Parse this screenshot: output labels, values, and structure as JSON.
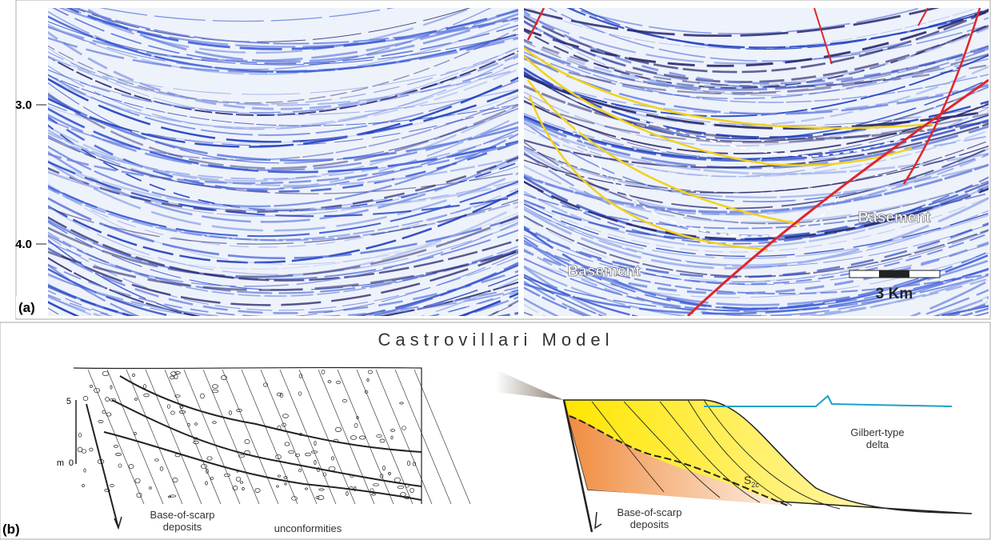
{
  "panel_a": {
    "label": "(a)",
    "depth_ticks": [
      "3.0",
      "4.0"
    ],
    "basement_labels": [
      "Basement",
      "Basement"
    ],
    "scale_bar": "3 Km"
  },
  "panel_b": {
    "label": "(b)",
    "title": "Castrovillari Model",
    "left_sketch": {
      "scale_top": "5",
      "scale_unit": "m",
      "scale_bottom": "0",
      "caption_deposits": "Base-of-scarp\ndeposits",
      "caption_unconformities": "unconformities"
    },
    "right_sketch": {
      "delta": "Gilbert-type\ndelta",
      "deposits": "Base-of-scarp\ndeposits",
      "surface": {
        "label": "S",
        "subscript": "2c"
      }
    }
  }
}
